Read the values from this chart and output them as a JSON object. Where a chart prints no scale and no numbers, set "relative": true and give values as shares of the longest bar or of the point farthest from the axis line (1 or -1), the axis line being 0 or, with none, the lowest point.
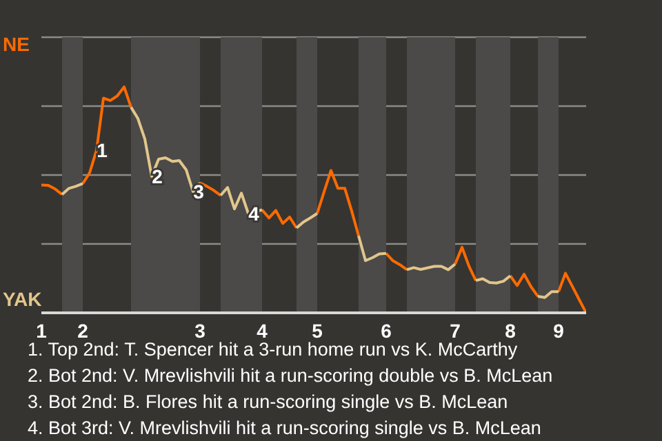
{
  "chart_data": {
    "type": "line",
    "relative": true,
    "categories": [
      "1",
      null,
      null,
      null,
      null,
      null,
      "2",
      null,
      null,
      null,
      null,
      null,
      null,
      null,
      null,
      null,
      null,
      null,
      null,
      null,
      null,
      null,
      null,
      "3",
      null,
      null,
      null,
      null,
      null,
      null,
      null,
      null,
      "4",
      null,
      null,
      null,
      null,
      null,
      null,
      null,
      "5",
      null,
      null,
      null,
      null,
      null,
      null,
      null,
      null,
      null,
      "6",
      null,
      null,
      null,
      null,
      null,
      null,
      null,
      null,
      null,
      "7",
      null,
      null,
      null,
      null,
      null,
      null,
      null,
      "8",
      null,
      null,
      null,
      null,
      null,
      null,
      "9",
      null,
      null,
      null,
      null
    ],
    "series": [
      {
        "name": "NE",
        "color": "#ff6a00",
        "values": [
          0.566,
          0.564,
          0.548,
          0.524,
          null,
          null,
          0.572,
          0.62,
          0.72,
          0.95,
          0.94,
          0.96,
          1,
          0.91,
          null,
          null,
          null,
          null,
          null,
          null,
          null,
          null,
          null,
          0.576,
          0.56,
          0.542,
          0.52,
          null,
          null,
          null,
          null,
          null,
          0.456,
          0.42,
          0.453,
          0.396,
          0.424,
          0.376,
          null,
          null,
          0.44,
          0.536,
          0.63,
          0.551,
          0.551,
          0.451,
          0.341,
          null,
          null,
          null,
          0.263,
          0.23,
          0.213,
          0.191,
          null,
          null,
          null,
          null,
          null,
          null,
          0.216,
          0.29,
          0.207,
          0.143,
          null,
          null,
          null,
          null,
          0.164,
          0.121,
          0.171,
          0.116,
          0.073,
          null,
          null,
          0.094,
          0.175,
          0.117,
          0.058,
          0
        ]
      },
      {
        "name": "YAK",
        "color": "#e2c68c",
        "values": [
          null,
          null,
          null,
          0.524,
          0.551,
          0.56,
          0.572,
          null,
          null,
          null,
          null,
          null,
          null,
          0.91,
          0.86,
          0.77,
          0.604,
          0.68,
          0.686,
          0.67,
          0.674,
          0.633,
          0.536,
          0.576,
          null,
          null,
          0.52,
          0.555,
          0.46,
          0.53,
          0.44,
          0.448,
          0.456,
          null,
          null,
          null,
          null,
          0.376,
          0.402,
          0.42,
          0.44,
          null,
          null,
          null,
          null,
          null,
          0.341,
          0.231,
          0.244,
          0.261,
          0.263,
          null,
          null,
          0.191,
          0.2,
          0.192,
          0.199,
          0.206,
          0.206,
          0.191,
          0.216,
          null,
          null,
          0.143,
          0.151,
          0.134,
          0.132,
          0.14,
          0.164,
          null,
          null,
          null,
          0.073,
          0.068,
          0.094,
          0.094,
          null,
          null,
          null,
          null
        ]
      }
    ],
    "grid": "y",
    "legend": "left",
    "marker": "none",
    "line_style": "solid",
    "annotations": [
      {
        "text": "1",
        "y": 0.72
      },
      {
        "text": "2",
        "y": 0.604
      },
      {
        "text": "3",
        "y": 0.536
      },
      {
        "text": "4",
        "y": 0.44
      },
      "1. Top 2nd: T. Spencer hit a 3-run home run vs K. McCarthy",
      "2. Bot 2nd: V. Mrevlishvili hit a run-scoring double vs B. McLean",
      "3. Bot 2nd: B. Flores hit a run-scoring single vs B. McLean",
      "4. Bot 3rd: V. Mrevlishvili hit a run-scoring single vs B. McLean"
    ]
  }
}
